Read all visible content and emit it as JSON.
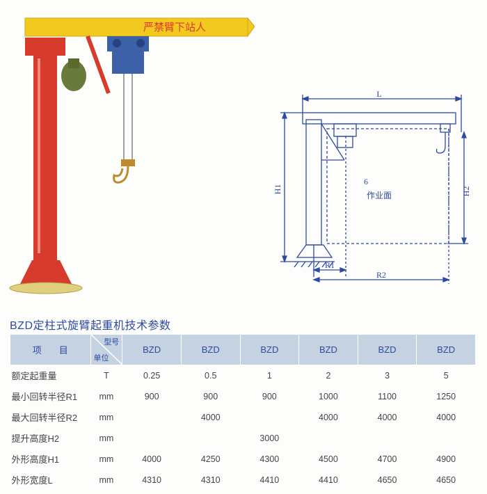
{
  "crane_photo": {
    "arm_text": "严禁臂下站人",
    "colors": {
      "arm": "#f2c91e",
      "column": "#d73b2c",
      "base": "#e0cf7e",
      "hoist": "#3d61a8",
      "motor": "#6a7a3a",
      "hook": "#c0892e"
    }
  },
  "diagram": {
    "labels": {
      "L": "L",
      "H1": "H1",
      "H2": "H2",
      "R1": "R1",
      "R2": "R2",
      "work_area": "作业面",
      "six": "6"
    },
    "line_color": "#2e4aa0",
    "line_width": 1.3
  },
  "spec_title": "BZD定柱式旋臂起重机技术参数",
  "table": {
    "header_bg": "#c4d2e1",
    "header_color": "#2e4aa0",
    "text_color": "#444",
    "proj_header": "项　目",
    "model_header": "型号",
    "unit_header": "单位",
    "models": [
      "BZD",
      "BZD",
      "BZD",
      "BZD",
      "BZD",
      "BZD"
    ],
    "rows": [
      {
        "label": "额定起重量",
        "unit": "T",
        "vals": [
          "0.25",
          "0.5",
          "1",
          "2",
          "3",
          "5"
        ]
      },
      {
        "label": "最小回转半径R1",
        "unit": "mm",
        "vals": [
          "900",
          "900",
          "900",
          "1000",
          "1100",
          "1250"
        ]
      },
      {
        "label": "最大回转半径R2",
        "unit": "mm",
        "vals": [
          "",
          "4000",
          "",
          "4000",
          "4000",
          "4000"
        ]
      },
      {
        "label": "提升高度H2",
        "unit": "mm",
        "vals": [
          "",
          "",
          "3000",
          "",
          "",
          ""
        ]
      },
      {
        "label": "外形高度H1",
        "unit": "mm",
        "vals": [
          "4000",
          "4250",
          "4300",
          "4500",
          "4700",
          "4900"
        ]
      },
      {
        "label": "外形宽度L",
        "unit": "mm",
        "vals": [
          "4310",
          "4310",
          "4410",
          "4410",
          "4650",
          "4650"
        ]
      }
    ]
  }
}
